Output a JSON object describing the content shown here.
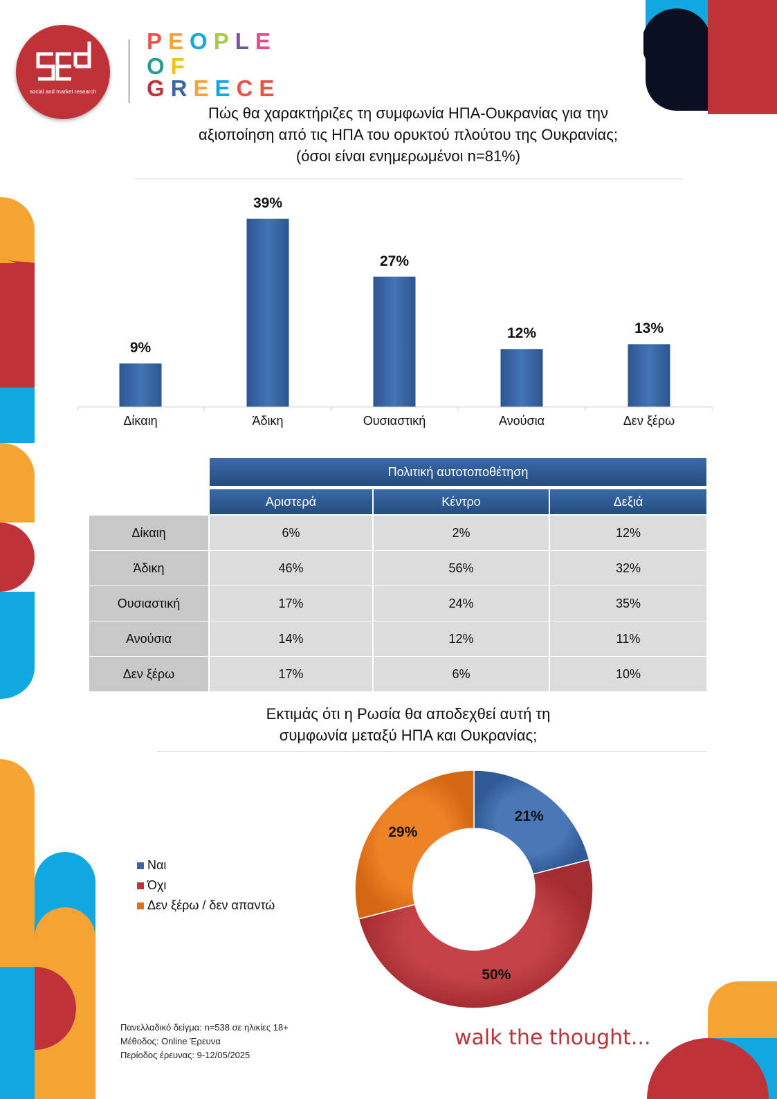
{
  "brand": {
    "logo_text": "social and market research",
    "program_lines": [
      "PEOPLE",
      "OF",
      "GREECE"
    ],
    "tagline": "walk the thought..."
  },
  "colors": {
    "bar": "#3a66a4",
    "header_blue": "#2e5c96",
    "red": "#c0323a",
    "orange": "#f5a333",
    "cyan": "#11a7e0",
    "navy": "#0a1020"
  },
  "chart1": {
    "title_lines": [
      "Πώς θα χαρακτήριζες τη συμφωνία ΗΠΑ-Ουκρανίας για την",
      "αξιοποίηση από τις ΗΠΑ του ορυκτού πλούτου της Ουκρανίας;",
      "(όσοι είναι ενημερωμένοι n=81%)"
    ]
  },
  "table": {
    "group_header": "Πολιτική αυτοτοποθέτηση",
    "columns": [
      "Αριστερά",
      "Κέντρο",
      "Δεξιά"
    ],
    "rows": [
      {
        "label": "Δίκαιη",
        "values": [
          "6%",
          "2%",
          "12%"
        ]
      },
      {
        "label": "Άδικη",
        "values": [
          "46%",
          "56%",
          "32%"
        ]
      },
      {
        "label": "Ουσιαστική",
        "values": [
          "17%",
          "24%",
          "35%"
        ]
      },
      {
        "label": "Ανούσια",
        "values": [
          "14%",
          "12%",
          "11%"
        ]
      },
      {
        "label": "Δεν ξέρω",
        "values": [
          "17%",
          "6%",
          "10%"
        ]
      }
    ]
  },
  "chart2": {
    "title_lines": [
      "Εκτιμάς ότι η Ρωσία θα αποδεχθεί αυτή τη",
      "συμφωνία μεταξύ ΗΠΑ και Ουκρανίας;"
    ]
  },
  "footnote": [
    "Πανελλαδικό δείγμα: n=538 σε ηλικίες 18+",
    "Μέθοδος: Online Έρευνα",
    "Περίοδος έρευνας: 9-12/05/2025"
  ],
  "chart_data": [
    {
      "type": "bar",
      "categories": [
        "Δίκαιη",
        "Άδικη",
        "Ουσιαστική",
        "Ανούσια",
        "Δεν ξέρω"
      ],
      "values": [
        9,
        39,
        27,
        12,
        13
      ],
      "value_labels": [
        "9%",
        "39%",
        "27%",
        "12%",
        "13%"
      ],
      "ylim": [
        0,
        40
      ],
      "grid": false
    },
    {
      "type": "pie",
      "variant": "donut",
      "labels": [
        "Ναι",
        "Όχι",
        "Δεν ξέρω / δεν απαντώ"
      ],
      "values": [
        21,
        50,
        29
      ],
      "value_labels": [
        "21%",
        "50%",
        "29%"
      ],
      "colors": [
        "#3a66a4",
        "#b8353a",
        "#e2731a"
      ],
      "legend": "left"
    }
  ]
}
